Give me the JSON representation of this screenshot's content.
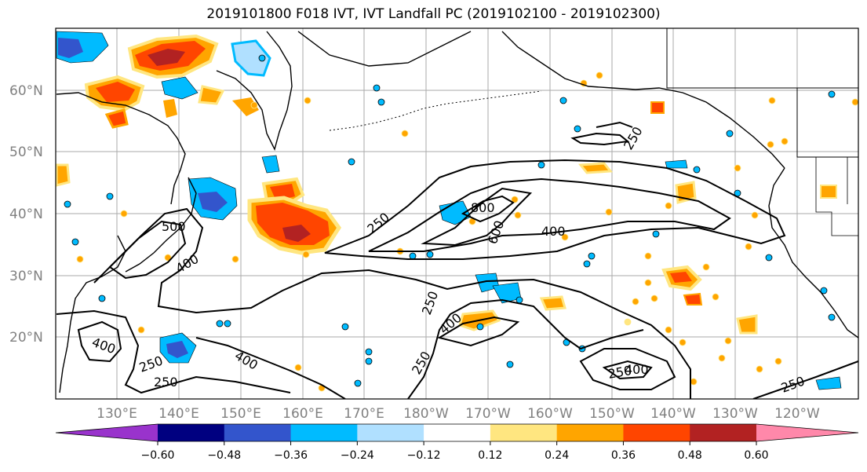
{
  "title": "2019101800 F018 IVT, IVT Landfall PC (2019102100 - 2019102300)",
  "lat_labels": [
    "60°N",
    "50°N",
    "40°N",
    "30°N",
    "20°N"
  ],
  "lon_labels": [
    "130°E",
    "140°E",
    "150°E",
    "160°E",
    "170°E",
    "180°W",
    "170°W",
    "160°W",
    "150°W",
    "140°W",
    "130°W",
    "120°W"
  ],
  "colorbar": {
    "colors": [
      "#9933cc",
      "#000080",
      "#3355cc",
      "#00bbff",
      "#b0e0ff",
      "#ffffff",
      "#ffe680",
      "#ffa500",
      "#ff4500",
      "#b22222",
      "#ff88aa"
    ],
    "ticks": [
      "−0.60",
      "−0.48",
      "−0.36",
      "−0.24",
      "−0.12",
      "0.12",
      "0.24",
      "0.36",
      "0.48",
      "0.60"
    ]
  },
  "contour_labels": [
    {
      "text": "250"
    },
    {
      "text": "250"
    },
    {
      "text": "250"
    },
    {
      "text": "250"
    },
    {
      "text": "250"
    },
    {
      "text": "250"
    },
    {
      "text": "250"
    },
    {
      "text": "250"
    },
    {
      "text": "400"
    },
    {
      "text": "400"
    },
    {
      "text": "400"
    },
    {
      "text": "400"
    },
    {
      "text": "400"
    },
    {
      "text": "600"
    },
    {
      "text": "800"
    },
    {
      "text": "500"
    },
    {
      "text": "400"
    }
  ],
  "colors": {
    "grid": "#aaaaaa",
    "coast": "#000000",
    "orange": "#ffa500",
    "red": "#ff4500",
    "darkred": "#b22222",
    "yellow": "#ffe680",
    "blue": "#00bbff",
    "navy": "#3355cc",
    "lightblue": "#b0e0ff"
  }
}
